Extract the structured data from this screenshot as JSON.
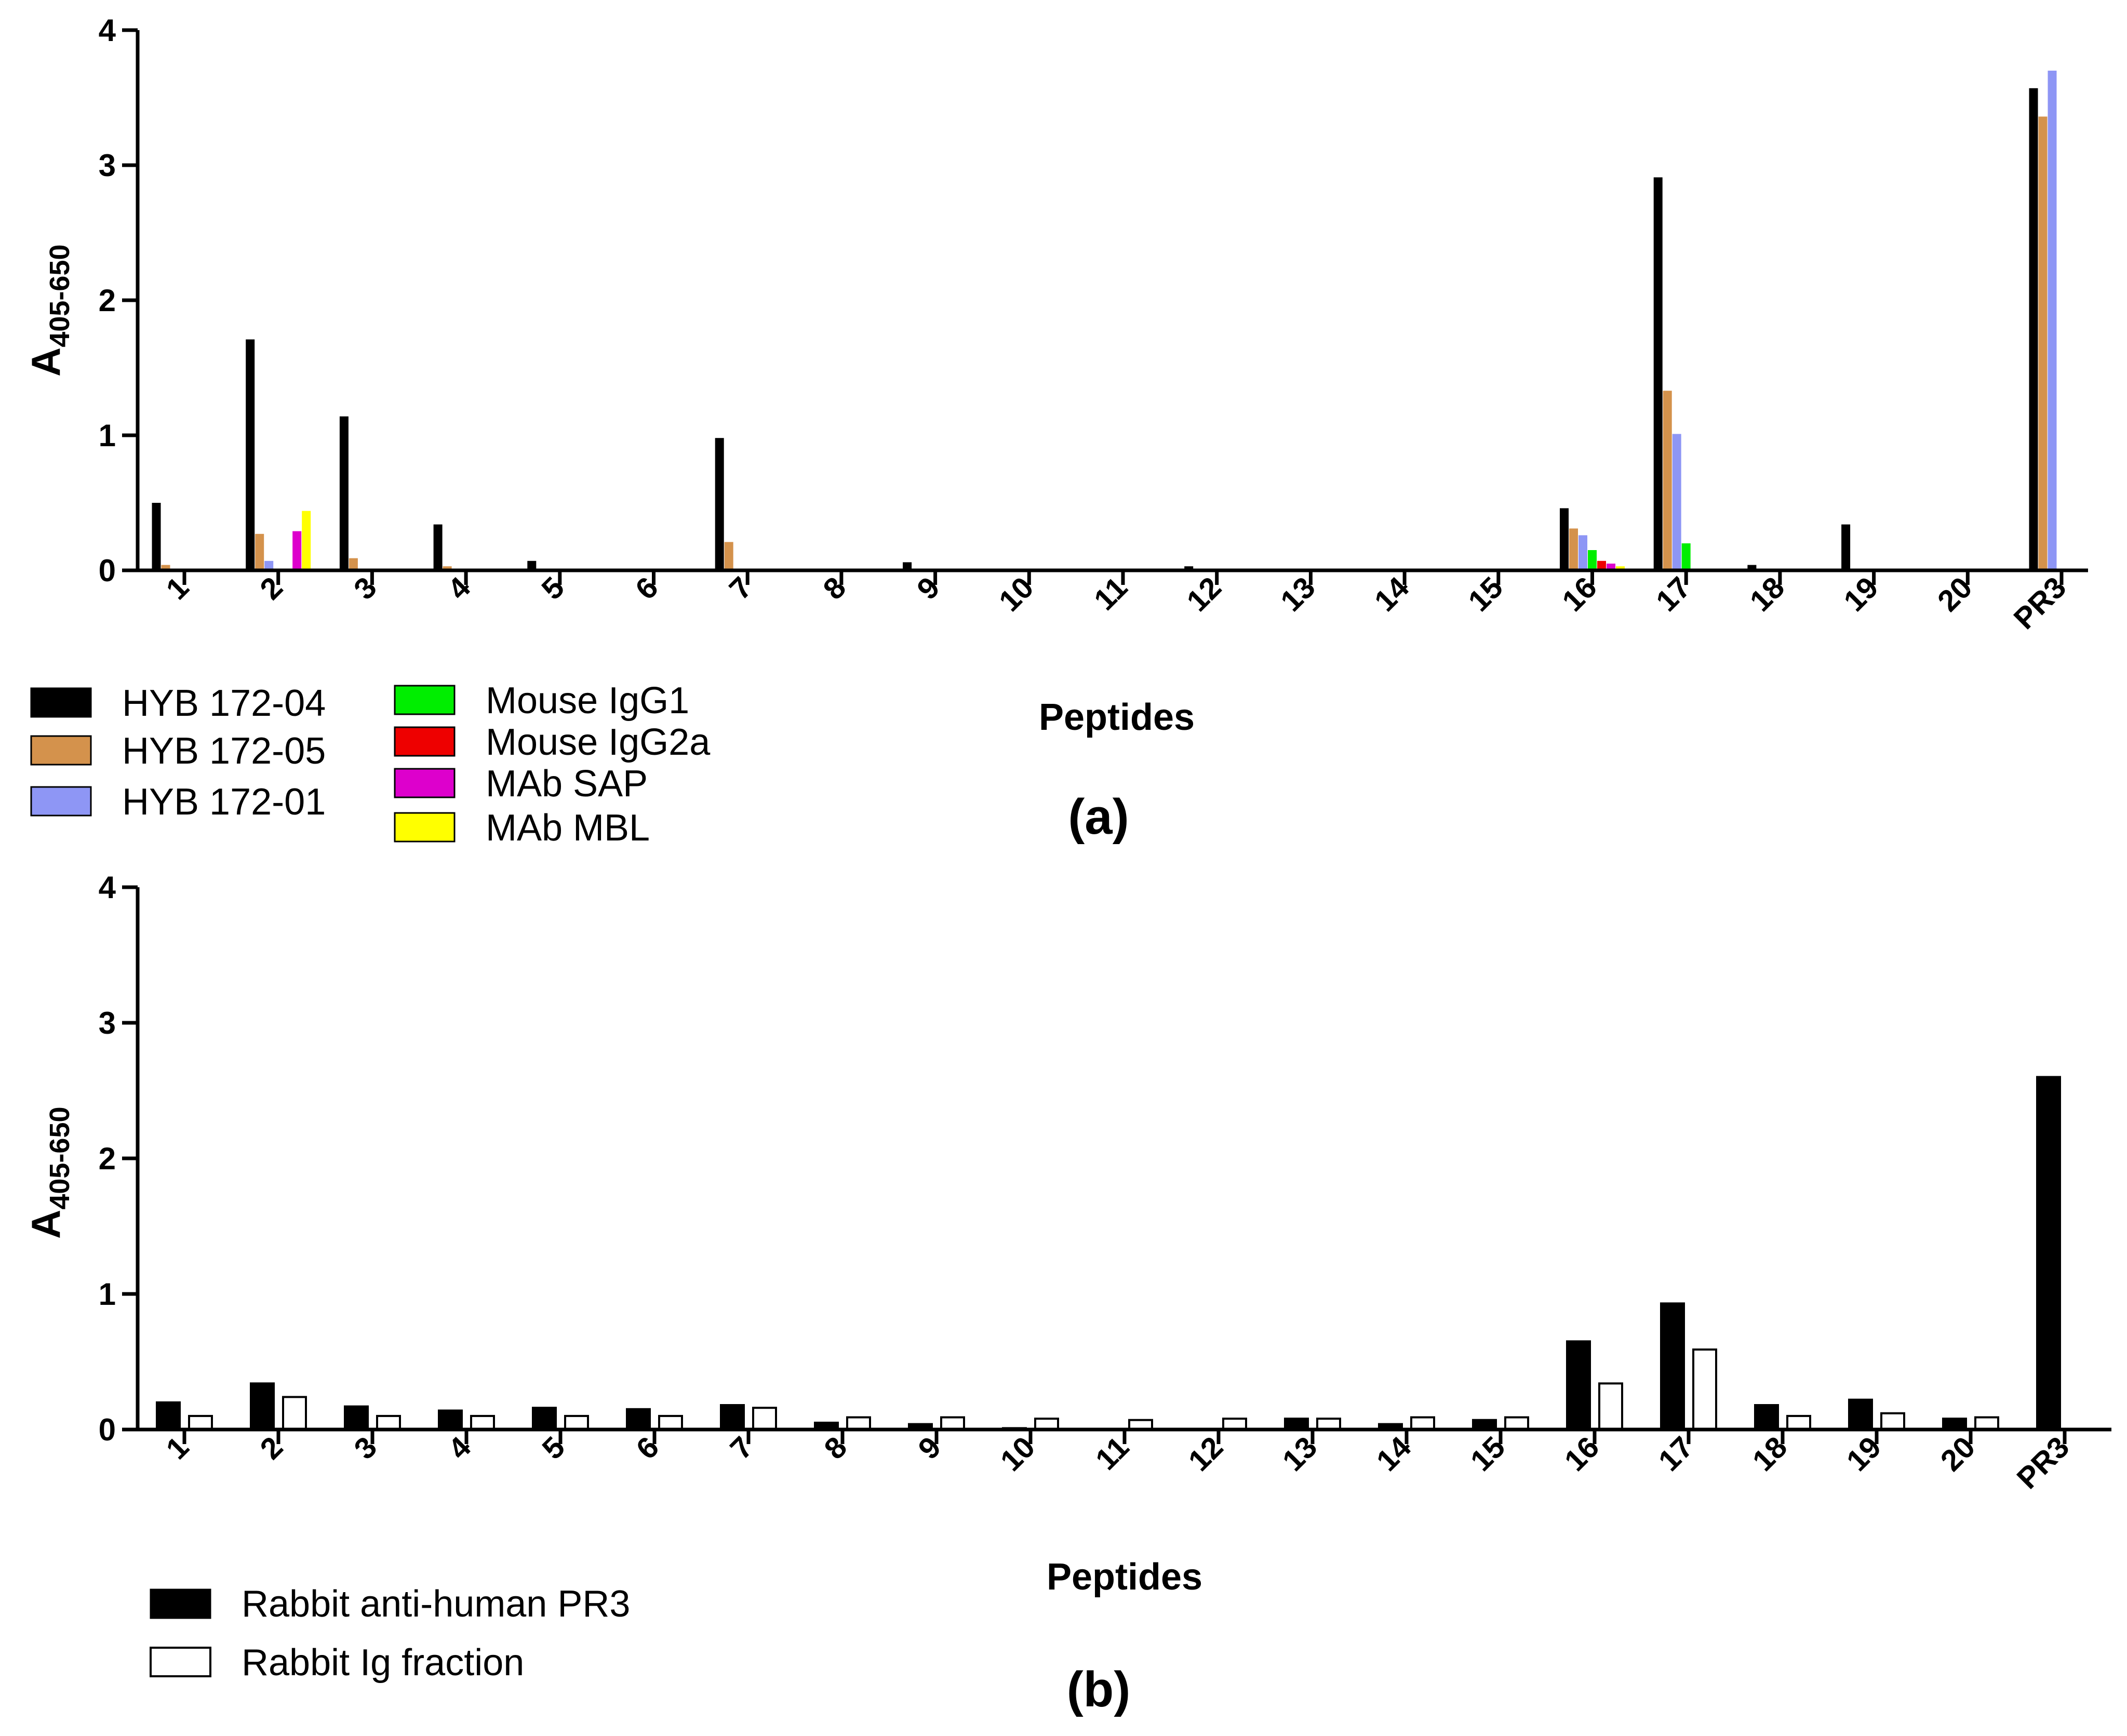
{
  "chart_data": [
    {
      "type": "bar",
      "panel": "(a)",
      "xlabel": "Peptides",
      "ylabel": "A",
      "ylabel_sub": "405-650",
      "ylim": [
        0,
        4
      ],
      "yticks": [
        "0",
        "1",
        "2",
        "3",
        "4"
      ],
      "categories": [
        "1",
        "2",
        "3",
        "4",
        "5",
        "6",
        "7",
        "8",
        "9",
        "10",
        "11",
        "12",
        "13",
        "14",
        "15",
        "16",
        "17",
        "18",
        "19",
        "20",
        "PR3"
      ],
      "series": [
        {
          "name": "HYB 172-04",
          "color": "#000000",
          "values": [
            0.5,
            1.71,
            1.14,
            0.34,
            0.07,
            0.0,
            0.98,
            0.01,
            0.06,
            0.0,
            0.0,
            0.03,
            0.0,
            0.0,
            0.01,
            0.46,
            2.91,
            0.04,
            0.34,
            0.0,
            3.57
          ]
        },
        {
          "name": "HYB 172-05",
          "color": "#d4924c",
          "values": [
            0.04,
            0.27,
            0.09,
            0.03,
            0.01,
            0.0,
            0.21,
            0.0,
            0.0,
            0.0,
            0.0,
            0.0,
            0.0,
            0.0,
            0.0,
            0.31,
            1.33,
            0.0,
            0.0,
            0.0,
            3.36
          ]
        },
        {
          "name": "HYB 172-01",
          "color": "#8e96f5",
          "values": [
            0.01,
            0.07,
            0.01,
            0.01,
            0.0,
            0.0,
            0.01,
            0.0,
            0.0,
            0.0,
            0.0,
            0.0,
            0.0,
            0.0,
            0.0,
            0.26,
            1.01,
            0.0,
            0.0,
            0.0,
            3.7
          ]
        },
        {
          "name": "Mouse IgG1",
          "color": "#00ee00",
          "values": [
            0.0,
            0.0,
            0.0,
            0.0,
            0.0,
            0.0,
            0.0,
            0.0,
            0.0,
            0.0,
            0.0,
            0.0,
            0.0,
            0.0,
            0.0,
            0.15,
            0.2,
            0.0,
            0.0,
            0.0,
            0.0
          ]
        },
        {
          "name": "Mouse IgG2a",
          "color": "#ee0000",
          "values": [
            0.0,
            0.0,
            0.0,
            0.0,
            0.0,
            0.0,
            0.0,
            0.0,
            0.0,
            0.0,
            0.0,
            0.0,
            0.0,
            0.0,
            0.0,
            0.07,
            0.0,
            0.0,
            0.0,
            0.0,
            0.0
          ]
        },
        {
          "name": "MAb SAP",
          "color": "#dd00cc",
          "values": [
            0.0,
            0.29,
            0.0,
            0.0,
            0.0,
            0.0,
            0.0,
            0.0,
            0.0,
            0.0,
            0.0,
            0.0,
            0.0,
            0.0,
            0.0,
            0.05,
            0.0,
            0.0,
            0.0,
            0.0,
            0.0
          ]
        },
        {
          "name": "MAb MBL",
          "color": "#ffff00",
          "values": [
            0.0,
            0.44,
            0.0,
            0.0,
            0.0,
            0.0,
            0.0,
            0.0,
            0.0,
            0.0,
            0.0,
            0.0,
            0.0,
            0.0,
            0.0,
            0.03,
            0.0,
            0.0,
            0.0,
            0.0,
            0.0
          ]
        }
      ],
      "legend": [
        "HYB 172-04",
        "HYB 172-05",
        "HYB 172-01",
        "Mouse IgG1",
        "Mouse IgG2a",
        "MAb SAP",
        "MAb MBL"
      ],
      "legend_position": "bottom-left"
    },
    {
      "type": "bar",
      "panel": "(b)",
      "xlabel": "Peptides",
      "ylabel": "A",
      "ylabel_sub": "405-650",
      "ylim": [
        0,
        4
      ],
      "yticks": [
        "0",
        "1",
        "2",
        "3",
        "4"
      ],
      "categories": [
        "1",
        "2",
        "3",
        "4",
        "5",
        "6",
        "7",
        "8",
        "9",
        "10",
        "11",
        "12",
        "13",
        "14",
        "15",
        "16",
        "17",
        "18",
        "19",
        "20",
        "PR3"
      ],
      "series": [
        {
          "name": "Rabbit anti-human PR3",
          "color": "#000000",
          "fill": "#000000",
          "values": [
            0.2,
            0.34,
            0.17,
            0.14,
            0.16,
            0.15,
            0.18,
            0.05,
            0.04,
            0.01,
            0.0,
            0.0,
            0.08,
            0.04,
            0.07,
            0.65,
            0.93,
            0.18,
            0.22,
            0.08,
            2.6
          ]
        },
        {
          "name": "Rabbit Ig fraction",
          "color": "#000000",
          "fill": "#ffffff",
          "values": [
            0.1,
            0.24,
            0.1,
            0.1,
            0.1,
            0.1,
            0.16,
            0.09,
            0.09,
            0.08,
            0.07,
            0.08,
            0.08,
            0.09,
            0.09,
            0.34,
            0.59,
            0.1,
            0.12,
            0.09,
            0.0
          ]
        }
      ],
      "legend": [
        "Rabbit anti-human PR3",
        "Rabbit Ig fraction"
      ],
      "legend_position": "bottom-left"
    }
  ]
}
